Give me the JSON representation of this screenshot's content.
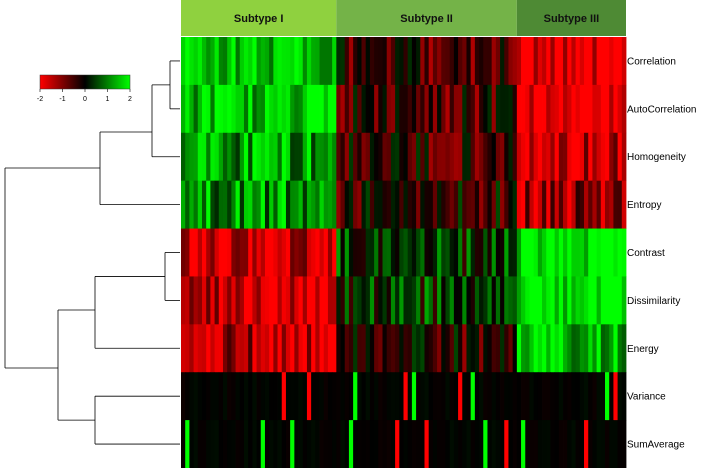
{
  "chart_data": {
    "type": "heatmap",
    "title": "",
    "rows": [
      "Correlation",
      "AutoCorrelation",
      "Homogeneity",
      "Entropy",
      "Contrast",
      "Dissimilarity",
      "Energy",
      "Variance",
      "SumAverage"
    ],
    "row_dendrogram_order": [
      "Correlation",
      "AutoCorrelation",
      "Homogeneity",
      "Entropy",
      "Contrast",
      "Dissimilarity",
      "Energy",
      "Variance",
      "SumAverage"
    ],
    "column_groups": [
      {
        "name": "Subtype I",
        "columns": 37,
        "color": "#8fd13f"
      },
      {
        "name": "Subtype II",
        "columns": 43,
        "color": "#74b348"
      },
      {
        "name": "Subtype III",
        "columns": 26,
        "color": "#4e8a34"
      }
    ],
    "group_means": {
      "Subtype I": {
        "Correlation": 1.6,
        "AutoCorrelation": 1.6,
        "Homogeneity": 1.3,
        "Entropy": 1.2,
        "Contrast": -1.6,
        "Dissimilarity": -1.6,
        "Energy": -1.4,
        "Variance": 0.1,
        "SumAverage": 0.1
      },
      "Subtype II": {
        "Correlation": -0.5,
        "AutoCorrelation": -0.5,
        "Homogeneity": -0.4,
        "Entropy": -0.3,
        "Contrast": 0.4,
        "Dissimilarity": 0.4,
        "Energy": -0.3,
        "Variance": 0.0,
        "SumAverage": 0.0
      },
      "Subtype III": {
        "Correlation": -2.0,
        "AutoCorrelation": -2.0,
        "Homogeneity": -1.6,
        "Entropy": -1.2,
        "Contrast": 2.0,
        "Dissimilarity": 2.0,
        "Energy": 1.5,
        "Variance": 0.0,
        "SumAverage": 0.0
      }
    },
    "legend": {
      "placement": "top-left",
      "range": [
        -2,
        2
      ],
      "ticks": [
        "-2",
        "-1",
        "0",
        "1",
        "2"
      ],
      "colors": {
        "low": "#ff0000",
        "mid": "#000000",
        "high": "#00ff00"
      }
    }
  }
}
